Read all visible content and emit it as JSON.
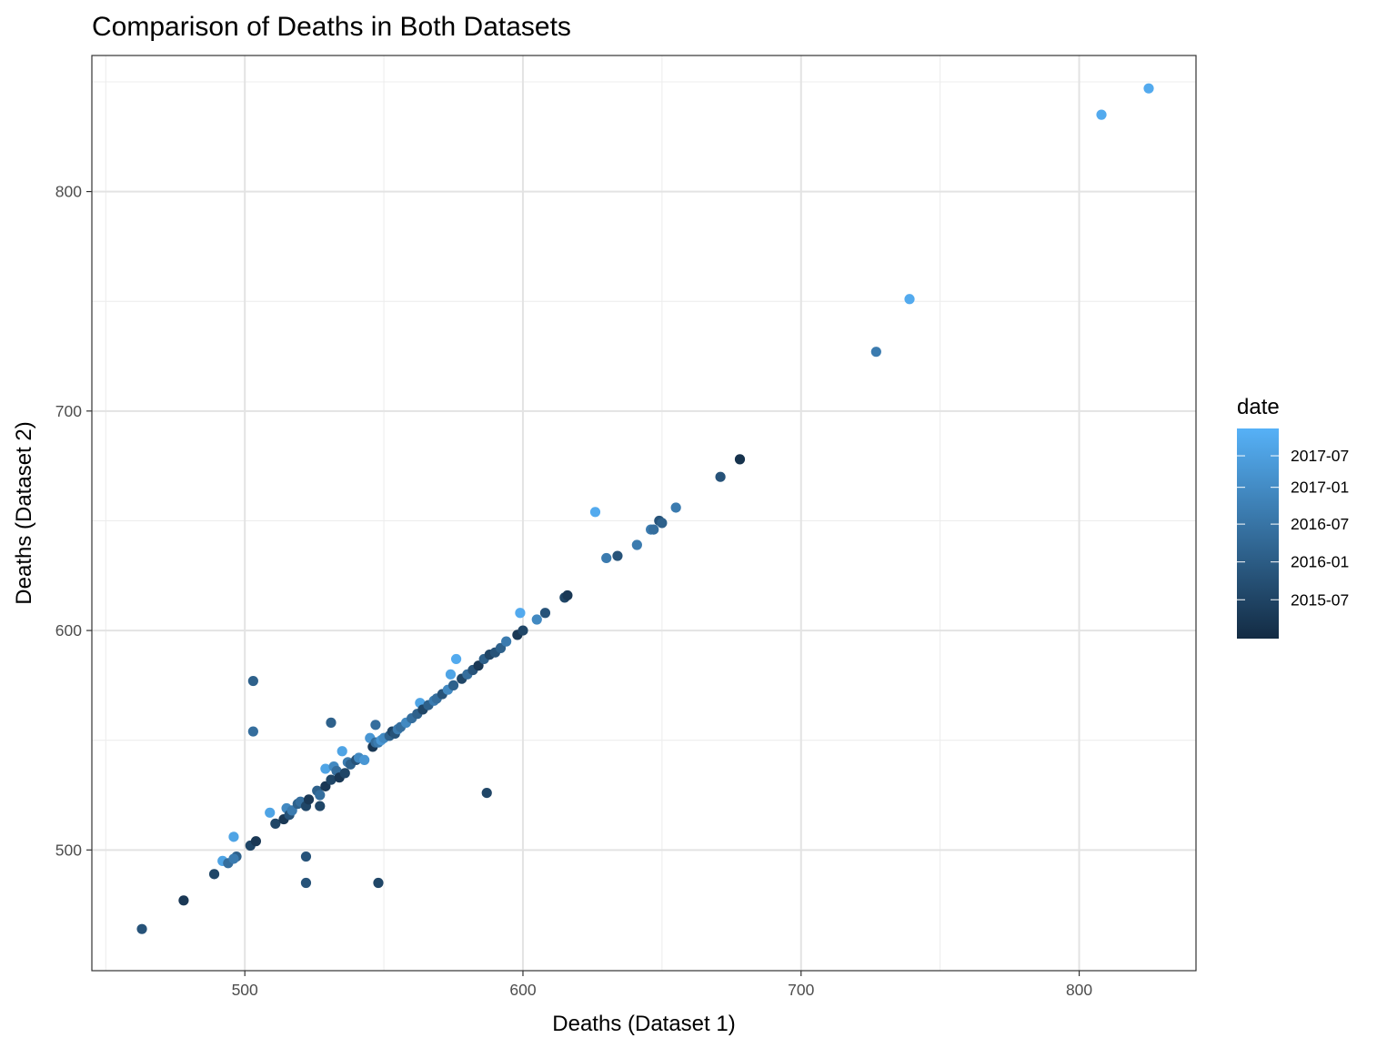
{
  "chart_data": {
    "type": "scatter",
    "title": "Comparison of Deaths in Both Datasets",
    "xlabel": "Deaths (Dataset 1)",
    "ylabel": "Deaths (Dataset 2)",
    "xlim": [
      445,
      842
    ],
    "ylim": [
      445,
      862
    ],
    "x_ticks": [
      500,
      600,
      700,
      800
    ],
    "y_ticks": [
      500,
      600,
      700,
      800
    ],
    "grid": true,
    "legend": {
      "title": "date",
      "position": "right",
      "type": "colorbar",
      "labels": [
        "2017-07",
        "2017-01",
        "2016-07",
        "2016-01",
        "2015-07"
      ],
      "color_low": "#132b43",
      "color_high": "#56b1f7"
    },
    "points_color_scale": "0 = earliest date (dark), 1 = latest date (light)",
    "x": [
      463,
      478,
      489,
      492,
      494,
      496,
      497,
      496,
      502,
      504,
      503,
      503,
      509,
      511,
      514,
      515,
      516,
      517,
      519,
      520,
      522,
      523,
      522,
      526,
      527,
      527,
      529,
      529,
      531,
      532,
      533,
      534,
      535,
      536,
      537,
      538,
      540,
      541,
      543,
      545,
      546,
      547,
      548,
      549,
      550,
      552,
      553,
      554,
      555,
      556,
      558,
      560,
      562,
      563,
      564,
      566,
      568,
      569,
      571,
      573,
      574,
      575,
      576,
      578,
      580,
      582,
      584,
      586,
      588,
      590,
      592,
      594,
      598,
      599,
      600,
      605,
      608,
      615,
      616,
      626,
      630,
      634,
      641,
      646,
      647,
      649,
      650,
      655,
      671,
      678,
      727,
      739,
      808,
      825,
      522,
      548,
      587,
      531,
      547
    ],
    "y": [
      464,
      477,
      489,
      495,
      494,
      506,
      497,
      496,
      502,
      504,
      577,
      554,
      517,
      512,
      514,
      519,
      516,
      518,
      521,
      522,
      520,
      523,
      497,
      527,
      520,
      525,
      529,
      537,
      532,
      538,
      536,
      533,
      545,
      535,
      540,
      539,
      541,
      542,
      541,
      551,
      547,
      549,
      549,
      550,
      551,
      552,
      554,
      553,
      555,
      556,
      558,
      560,
      562,
      567,
      564,
      566,
      568,
      569,
      571,
      573,
      580,
      575,
      587,
      578,
      580,
      582,
      584,
      587,
      589,
      590,
      592,
      595,
      598,
      608,
      600,
      605,
      608,
      615,
      616,
      654,
      633,
      634,
      639,
      646,
      646,
      650,
      649,
      656,
      670,
      678,
      727,
      751,
      835,
      847,
      485,
      485,
      526,
      558,
      557
    ],
    "date_level": [
      0.3,
      0.1,
      0.2,
      0.9,
      0.5,
      0.9,
      0.4,
      0.6,
      0.2,
      0.1,
      0.4,
      0.5,
      0.9,
      0.2,
      0.1,
      0.7,
      0.3,
      0.6,
      0.4,
      0.5,
      0.2,
      0.1,
      0.3,
      0.4,
      0.2,
      0.5,
      0.1,
      0.9,
      0.2,
      0.7,
      0.5,
      0.1,
      0.9,
      0.2,
      0.6,
      0.4,
      0.3,
      0.7,
      0.8,
      0.8,
      0.1,
      0.5,
      0.6,
      0.8,
      0.7,
      0.4,
      0.2,
      0.3,
      0.6,
      0.5,
      0.7,
      0.5,
      0.4,
      0.9,
      0.2,
      0.4,
      0.6,
      0.5,
      0.3,
      0.7,
      0.9,
      0.4,
      0.95,
      0.2,
      0.5,
      0.3,
      0.1,
      0.4,
      0.2,
      0.3,
      0.4,
      0.6,
      0.1,
      0.95,
      0.2,
      0.7,
      0.3,
      0.2,
      0.1,
      0.95,
      0.6,
      0.3,
      0.6,
      0.6,
      0.5,
      0.3,
      0.4,
      0.6,
      0.3,
      0.05,
      0.6,
      0.95,
      0.95,
      0.95,
      0.3,
      0.2,
      0.2,
      0.4,
      0.5
    ]
  }
}
